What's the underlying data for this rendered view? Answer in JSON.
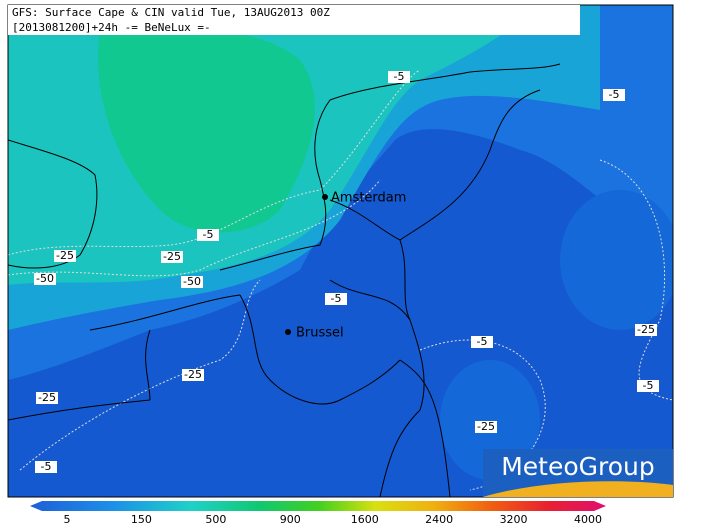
{
  "header": {
    "line1": "GFS: Surface Cape & CIN valid Tue, 13AUG2013 00Z",
    "line2": "[2013081200]+24h -= BeNeLux =-"
  },
  "cities": [
    {
      "label": "Amsterdam"
    },
    {
      "label": "Brussel"
    }
  ],
  "contour_labels": [
    "-5",
    "-5",
    "-5",
    "-25",
    "-25",
    "-50",
    "-50",
    "-5",
    "-25",
    "-5",
    "-5",
    "-25",
    "-25",
    "-25",
    "-5"
  ],
  "colorbar": {
    "labels": [
      5,
      150,
      500,
      900,
      1600,
      2400,
      3200,
      4000
    ]
  },
  "logo": "MeteoGroup"
}
